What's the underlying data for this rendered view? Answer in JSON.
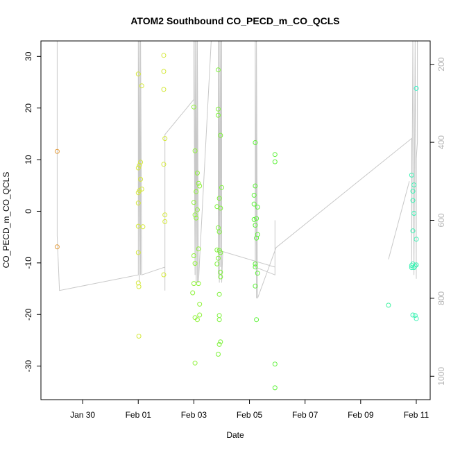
{
  "chart_data": {
    "type": "scatter",
    "title": "ATOM2 Southbound CO_PECD_m_CO_QCLS",
    "xlabel": "Date",
    "ylabel": "CO_PECD_m_CO_QCLS",
    "xlim": [
      "2017-01-28T12:00",
      "2017-02-11T12:00"
    ],
    "ylim": [
      -36.5,
      33
    ],
    "y_ticks": [
      30,
      20,
      10,
      0,
      -10,
      -20,
      -30
    ],
    "x_ticks": [
      {
        "t": "2017-01-30",
        "label": "Jan 30"
      },
      {
        "t": "2017-02-01",
        "label": "Feb 01"
      },
      {
        "t": "2017-02-03",
        "label": "Feb 03"
      },
      {
        "t": "2017-02-05",
        "label": "Feb 05"
      },
      {
        "t": "2017-02-07",
        "label": "Feb 07"
      },
      {
        "t": "2017-02-09",
        "label": "Feb 09"
      },
      {
        "t": "2017-02-11",
        "label": "Feb 11"
      }
    ],
    "right_axis": {
      "ylim": [
        1060,
        140
      ],
      "ticks": [
        200,
        400,
        600,
        800,
        1000
      ],
      "color": "#b4b4b4"
    },
    "grid": false,
    "points": [
      {
        "t": "2017-01-29T02:00",
        "y": 11.6,
        "color": "#e39a39"
      },
      {
        "t": "2017-01-29T02:00",
        "y": -6.9,
        "color": "#e39a39"
      },
      {
        "t": "2017-02-01T00:00",
        "y": -13.9,
        "color": "#d4e83a"
      },
      {
        "t": "2017-02-01T00:30",
        "y": -14.6,
        "color": "#d4e83a"
      },
      {
        "t": "2017-02-01T00:30",
        "y": -24.2,
        "color": "#d4e83a"
      },
      {
        "t": "2017-02-01T00:00",
        "y": -8.0,
        "color": "#d4e83a"
      },
      {
        "t": "2017-02-01T00:00",
        "y": -2.9,
        "color": "#d4e83a"
      },
      {
        "t": "2017-02-01T04:00",
        "y": -3.0,
        "color": "#d4e83a"
      },
      {
        "t": "2017-02-01T00:00",
        "y": 1.6,
        "color": "#d4e83a"
      },
      {
        "t": "2017-02-01T00:00",
        "y": 3.6,
        "color": "#d4e83a"
      },
      {
        "t": "2017-02-01T01:00",
        "y": 4.0,
        "color": "#d4e83a"
      },
      {
        "t": "2017-02-01T03:00",
        "y": 4.3,
        "color": "#d4e83a"
      },
      {
        "t": "2017-02-01T02:00",
        "y": 6.2,
        "color": "#d4e83a"
      },
      {
        "t": "2017-02-01T00:00",
        "y": 8.4,
        "color": "#d4e83a"
      },
      {
        "t": "2017-02-01T01:00",
        "y": 8.9,
        "color": "#d4e83a"
      },
      {
        "t": "2017-02-01T02:00",
        "y": 9.5,
        "color": "#d4e83a"
      },
      {
        "t": "2017-02-01T00:00",
        "y": 26.6,
        "color": "#d4e83a"
      },
      {
        "t": "2017-02-01T03:00",
        "y": 24.3,
        "color": "#d4e83a"
      },
      {
        "t": "2017-02-01T22:00",
        "y": 30.2,
        "color": "#d4e83a"
      },
      {
        "t": "2017-02-01T22:00",
        "y": 27.1,
        "color": "#d4e83a"
      },
      {
        "t": "2017-02-01T22:00",
        "y": 23.6,
        "color": "#d4e83a"
      },
      {
        "t": "2017-02-01T23:00",
        "y": 14.1,
        "color": "#d4e83a"
      },
      {
        "t": "2017-02-01T22:00",
        "y": 9.1,
        "color": "#d4e83a"
      },
      {
        "t": "2017-02-01T23:00",
        "y": -0.7,
        "color": "#d4e83a"
      },
      {
        "t": "2017-02-01T23:00",
        "y": -2.0,
        "color": "#d4e83a"
      },
      {
        "t": "2017-02-01T22:00",
        "y": -12.3,
        "color": "#d4e83a"
      },
      {
        "t": "2017-02-03T00:00",
        "y": 20.2,
        "color": "#8ff23a"
      },
      {
        "t": "2017-02-03T01:00",
        "y": 11.7,
        "color": "#8ff23a"
      },
      {
        "t": "2017-02-03T03:00",
        "y": 7.4,
        "color": "#8ff23a"
      },
      {
        "t": "2017-02-03T04:00",
        "y": 5.4,
        "color": "#8ff23a"
      },
      {
        "t": "2017-02-03T05:00",
        "y": 4.9,
        "color": "#8ff23a"
      },
      {
        "t": "2017-02-03T02:00",
        "y": 3.8,
        "color": "#8ff23a"
      },
      {
        "t": "2017-02-03T00:00",
        "y": 1.7,
        "color": "#8ff23a"
      },
      {
        "t": "2017-02-03T03:00",
        "y": 0.3,
        "color": "#8ff23a"
      },
      {
        "t": "2017-02-03T01:00",
        "y": -0.7,
        "color": "#8ff23a"
      },
      {
        "t": "2017-02-03T02:00",
        "y": -1.3,
        "color": "#8ff23a"
      },
      {
        "t": "2017-02-03T04:00",
        "y": -7.3,
        "color": "#8ff23a"
      },
      {
        "t": "2017-02-03T00:00",
        "y": -8.6,
        "color": "#8ff23a"
      },
      {
        "t": "2017-02-03T01:00",
        "y": -10.1,
        "color": "#8ff23a"
      },
      {
        "t": "2017-02-03T00:00",
        "y": -14.0,
        "color": "#8ff23a"
      },
      {
        "t": "2017-02-03T04:00",
        "y": -14.0,
        "color": "#8ff23a"
      },
      {
        "t": "2017-02-02T23:00",
        "y": -15.8,
        "color": "#8ff23a"
      },
      {
        "t": "2017-02-03T05:00",
        "y": -18.0,
        "color": "#8ff23a"
      },
      {
        "t": "2017-02-03T05:00",
        "y": -20.1,
        "color": "#8ff23a"
      },
      {
        "t": "2017-02-03T01:00",
        "y": -20.6,
        "color": "#8ff23a"
      },
      {
        "t": "2017-02-03T03:00",
        "y": -21.0,
        "color": "#8ff23a"
      },
      {
        "t": "2017-02-03T01:00",
        "y": -29.4,
        "color": "#8ff23a"
      },
      {
        "t": "2017-02-03T21:00",
        "y": 27.4,
        "color": "#7df23a"
      },
      {
        "t": "2017-02-03T21:00",
        "y": 19.8,
        "color": "#7df23a"
      },
      {
        "t": "2017-02-03T21:00",
        "y": 18.6,
        "color": "#7df23a"
      },
      {
        "t": "2017-02-03T23:00",
        "y": 14.7,
        "color": "#7df23a"
      },
      {
        "t": "2017-02-04T00:00",
        "y": 4.6,
        "color": "#7df23a"
      },
      {
        "t": "2017-02-03T22:00",
        "y": 2.5,
        "color": "#7df23a"
      },
      {
        "t": "2017-02-03T20:00",
        "y": 0.9,
        "color": "#7df23a"
      },
      {
        "t": "2017-02-03T23:00",
        "y": 0.6,
        "color": "#7df23a"
      },
      {
        "t": "2017-02-03T21:00",
        "y": -3.2,
        "color": "#7df23a"
      },
      {
        "t": "2017-02-03T22:00",
        "y": -4.0,
        "color": "#7df23a"
      },
      {
        "t": "2017-02-03T20:00",
        "y": -7.5,
        "color": "#7df23a"
      },
      {
        "t": "2017-02-03T22:00",
        "y": -7.6,
        "color": "#7df23a"
      },
      {
        "t": "2017-02-03T23:00",
        "y": -8.0,
        "color": "#7df23a"
      },
      {
        "t": "2017-02-03T21:00",
        "y": -9.1,
        "color": "#7df23a"
      },
      {
        "t": "2017-02-03T20:00",
        "y": -10.2,
        "color": "#7df23a"
      },
      {
        "t": "2017-02-03T23:00",
        "y": -11.8,
        "color": "#7df23a"
      },
      {
        "t": "2017-02-03T23:00",
        "y": -12.7,
        "color": "#7df23a"
      },
      {
        "t": "2017-02-03T22:00",
        "y": -16.1,
        "color": "#7df23a"
      },
      {
        "t": "2017-02-03T22:00",
        "y": -20.2,
        "color": "#7df23a"
      },
      {
        "t": "2017-02-03T22:00",
        "y": -21.0,
        "color": "#7df23a"
      },
      {
        "t": "2017-02-03T23:00",
        "y": -25.3,
        "color": "#7df23a"
      },
      {
        "t": "2017-02-03T22:00",
        "y": -25.8,
        "color": "#7df23a"
      },
      {
        "t": "2017-02-03T21:00",
        "y": -27.7,
        "color": "#7df23a"
      },
      {
        "t": "2017-02-05T05:00",
        "y": 13.3,
        "color": "#5ef23a"
      },
      {
        "t": "2017-02-05T05:00",
        "y": 4.9,
        "color": "#5ef23a"
      },
      {
        "t": "2017-02-05T04:00",
        "y": 3.1,
        "color": "#5ef23a"
      },
      {
        "t": "2017-02-05T04:00",
        "y": 1.4,
        "color": "#5ef23a"
      },
      {
        "t": "2017-02-05T07:00",
        "y": 0.8,
        "color": "#5ef23a"
      },
      {
        "t": "2017-02-05T04:00",
        "y": -1.6,
        "color": "#5ef23a"
      },
      {
        "t": "2017-02-05T06:00",
        "y": -1.4,
        "color": "#5ef23a"
      },
      {
        "t": "2017-02-05T05:00",
        "y": -2.7,
        "color": "#5ef23a"
      },
      {
        "t": "2017-02-05T07:00",
        "y": -4.5,
        "color": "#5ef23a"
      },
      {
        "t": "2017-02-05T06:00",
        "y": -5.2,
        "color": "#5ef23a"
      },
      {
        "t": "2017-02-05T05:00",
        "y": -10.2,
        "color": "#5ef23a"
      },
      {
        "t": "2017-02-05T05:00",
        "y": -10.8,
        "color": "#5ef23a"
      },
      {
        "t": "2017-02-05T07:00",
        "y": -12.0,
        "color": "#5ef23a"
      },
      {
        "t": "2017-02-05T05:00",
        "y": -14.5,
        "color": "#5ef23a"
      },
      {
        "t": "2017-02-05T06:00",
        "y": -21.0,
        "color": "#5ef23a"
      },
      {
        "t": "2017-02-05T22:00",
        "y": 11.0,
        "color": "#5ef23a"
      },
      {
        "t": "2017-02-05T22:00",
        "y": 9.6,
        "color": "#5ef23a"
      },
      {
        "t": "2017-02-05T22:00",
        "y": -29.6,
        "color": "#5ef23a"
      },
      {
        "t": "2017-02-05T22:00",
        "y": -34.2,
        "color": "#5ef23a"
      },
      {
        "t": "2017-02-10T00:00",
        "y": -18.2,
        "color": "#3cf2a0"
      },
      {
        "t": "2017-02-10T20:00",
        "y": 7.0,
        "color": "#3cf2b4"
      },
      {
        "t": "2017-02-10T22:00",
        "y": 5.1,
        "color": "#3cf2b4"
      },
      {
        "t": "2017-02-10T21:00",
        "y": 3.9,
        "color": "#3cf2b4"
      },
      {
        "t": "2017-02-10T21:00",
        "y": 2.1,
        "color": "#3cf2b4"
      },
      {
        "t": "2017-02-10T22:00",
        "y": -0.4,
        "color": "#3cf2b4"
      },
      {
        "t": "2017-02-10T21:00",
        "y": -3.8,
        "color": "#3cf2b4"
      },
      {
        "t": "2017-02-11T00:00",
        "y": -5.4,
        "color": "#3cf2b4"
      },
      {
        "t": "2017-02-10T20:00",
        "y": -10.5,
        "color": "#3cf2b4"
      },
      {
        "t": "2017-02-10T21:00",
        "y": -10.2,
        "color": "#3cf2b4"
      },
      {
        "t": "2017-02-10T22:00",
        "y": -10.9,
        "color": "#3cf2b4"
      },
      {
        "t": "2017-02-10T23:00",
        "y": -10.6,
        "color": "#3cf2b4"
      },
      {
        "t": "2017-02-11T00:00",
        "y": -10.4,
        "color": "#3cf2b4"
      },
      {
        "t": "2017-02-10T20:00",
        "y": -10.9,
        "color": "#3cf2b4"
      },
      {
        "t": "2017-02-10T21:00",
        "y": -20.1,
        "color": "#3cf2b4"
      },
      {
        "t": "2017-02-10T23:00",
        "y": -20.2,
        "color": "#3cf2b4"
      },
      {
        "t": "2017-02-11T00:00",
        "y": -20.8,
        "color": "#3cf2b4"
      },
      {
        "t": "2017-02-11T00:00",
        "y": 23.8,
        "color": "#3cf2c8"
      }
    ],
    "pressure_trace": {
      "color": "#c8c8c8",
      "points": [
        [
          "2017-01-29T02:00",
          140
        ],
        [
          "2017-01-29T02:00",
          640
        ],
        [
          "2017-01-29T04:00",
          780
        ],
        [
          "2017-02-01T00:00",
          740
        ],
        [
          "2017-02-01T00:00",
          140
        ],
        [
          "2017-02-01T01:00",
          760
        ],
        [
          "2017-02-01T01:00",
          140
        ],
        [
          "2017-02-01T02:00",
          740
        ],
        [
          "2017-02-01T02:00",
          140
        ],
        [
          "2017-02-01T03:00",
          740
        ],
        [
          "2017-02-01T23:00",
          720
        ],
        [
          "2017-02-01T23:00",
          780
        ],
        [
          "2017-02-01T23:00",
          380
        ],
        [
          "2017-02-03T00:00",
          290
        ],
        [
          "2017-02-03T00:00",
          140
        ],
        [
          "2017-02-03T01:00",
          740
        ],
        [
          "2017-02-03T01:00",
          140
        ],
        [
          "2017-02-03T02:00",
          760
        ],
        [
          "2017-02-03T02:00",
          140
        ],
        [
          "2017-02-03T03:00",
          760
        ],
        [
          "2017-02-03T03:00",
          140
        ],
        [
          "2017-02-03T04:00",
          760
        ],
        [
          "2017-02-03T05:00",
          700
        ],
        [
          "2017-02-03T15:00",
          140
        ],
        [
          "2017-02-03T21:00",
          140
        ],
        [
          "2017-02-03T21:00",
          740
        ],
        [
          "2017-02-03T22:00",
          140
        ],
        [
          "2017-02-03T22:00",
          760
        ],
        [
          "2017-02-03T23:00",
          140
        ],
        [
          "2017-02-03T23:00",
          720
        ],
        [
          "2017-02-04T00:00",
          140
        ],
        [
          "2017-02-04T00:00",
          760
        ],
        [
          "2017-02-04T01:00",
          680
        ],
        [
          "2017-02-05T22:00",
          720
        ],
        [
          "2017-02-05T22:00",
          600
        ],
        [
          "2017-02-05T22:00",
          740
        ],
        [
          "2017-02-05T05:00",
          720
        ],
        [
          "2017-02-05T05:00",
          140
        ],
        [
          "2017-02-05T06:00",
          800
        ],
        [
          "2017-02-05T06:00",
          140
        ],
        [
          "2017-02-05T07:00",
          800
        ],
        [
          "2017-02-05T23:00",
          670
        ],
        [
          "2017-02-10T20:00",
          390
        ],
        [
          "2017-02-10T20:00",
          710
        ],
        [
          "2017-02-10T21:00",
          140
        ],
        [
          "2017-02-10T22:00",
          740
        ],
        [
          "2017-02-10T23:00",
          140
        ],
        [
          "2017-02-11T00:00",
          750
        ],
        [
          "2017-02-11T00:00",
          440
        ],
        [
          "2017-02-11T01:00",
          400
        ],
        [
          "2017-02-11T01:00",
          140
        ]
      ],
      "extra_segments": [
        [
          [
            "2017-02-10T00:00",
            700
          ],
          [
            "2017-02-10T18:00",
            500
          ]
        ]
      ]
    }
  }
}
